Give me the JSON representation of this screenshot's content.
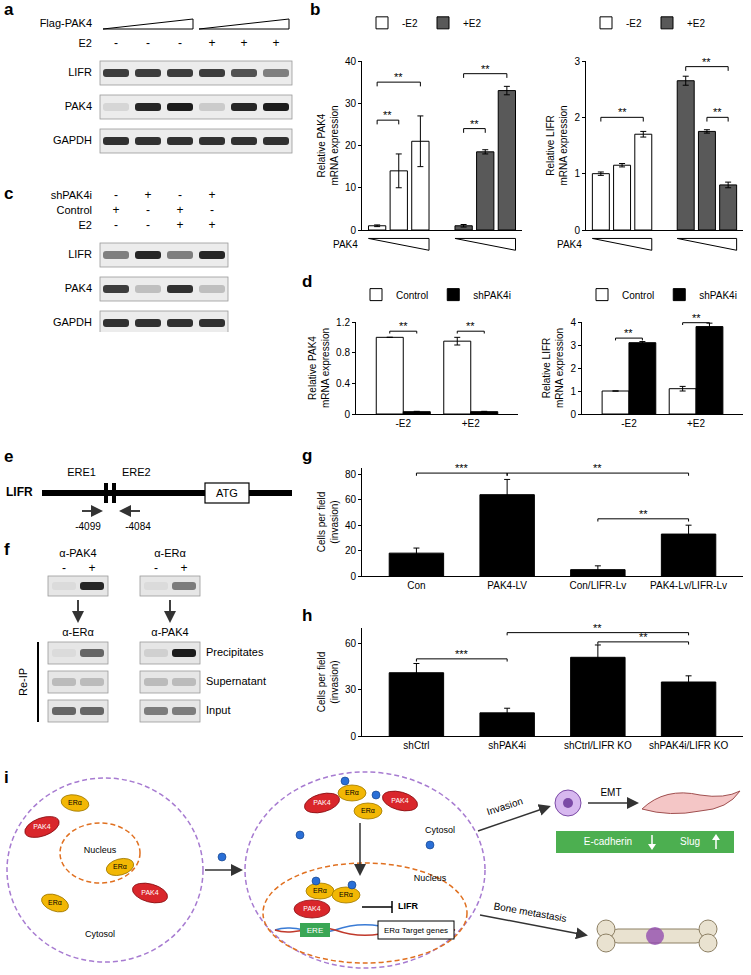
{
  "panel_labels": [
    "a",
    "b",
    "c",
    "d",
    "e",
    "f",
    "g",
    "h",
    "i"
  ],
  "chart_data": [
    {
      "type": "bar",
      "y_label": [
        "Relative PAK4",
        "mRNA expression"
      ],
      "x_label": "PAK4",
      "tick_labels": "y",
      "legend": "top",
      "grid": false,
      "ylim": [
        0,
        40
      ],
      "yticks": [
        0,
        10,
        20,
        30,
        40
      ],
      "series": [
        {
          "name": "-E2",
          "color": "#ffffff",
          "values": [
            1,
            14,
            21
          ],
          "errors": [
            0.2,
            4,
            6
          ]
        },
        {
          "name": "+E2",
          "color": "#595959",
          "values": [
            1,
            18.5,
            33
          ],
          "errors": [
            0.3,
            0.5,
            1
          ]
        }
      ],
      "significance": [
        {
          "pair": [
            [
              0,
              0
            ],
            [
              0,
              1
            ]
          ],
          "y": 26,
          "label": "**"
        },
        {
          "pair": [
            [
              0,
              0
            ],
            [
              0,
              2
            ]
          ],
          "y": 35,
          "label": "**"
        },
        {
          "pair": [
            [
              1,
              0
            ],
            [
              1,
              1
            ]
          ],
          "y": 24,
          "label": "**"
        },
        {
          "pair": [
            [
              1,
              0
            ],
            [
              1,
              2
            ]
          ],
          "y": 37,
          "label": "**"
        }
      ]
    },
    {
      "type": "bar",
      "y_label": [
        "Relative LIFR",
        "mRNA expression"
      ],
      "x_label": "PAK4",
      "tick_labels": "y",
      "legend": "top",
      "grid": false,
      "ylim": [
        0,
        3
      ],
      "yticks": [
        0,
        1,
        2,
        3
      ],
      "series": [
        {
          "name": "-E2",
          "color": "#ffffff",
          "values": [
            1.0,
            1.15,
            1.7
          ],
          "errors": [
            0.03,
            0.03,
            0.05
          ]
        },
        {
          "name": "+E2",
          "color": "#595959",
          "values": [
            2.65,
            1.75,
            0.8
          ],
          "errors": [
            0.08,
            0.03,
            0.05
          ]
        }
      ],
      "significance": [
        {
          "pair": [
            [
              0,
              0
            ],
            [
              0,
              2
            ]
          ],
          "y": 2.0,
          "label": "**"
        },
        {
          "pair": [
            [
              1,
              0
            ],
            [
              1,
              2
            ]
          ],
          "y": 2.9,
          "label": "**"
        },
        {
          "pair": [
            [
              1,
              1
            ],
            [
              1,
              2
            ]
          ],
          "y": 2.0,
          "label": "**"
        }
      ]
    },
    {
      "type": "bar",
      "y_label": [
        "Relative PAK4",
        "mRNA expression"
      ],
      "legend": "top",
      "grid": false,
      "categories": [
        "-E2",
        "+E2"
      ],
      "ylim": [
        0,
        1.2
      ],
      "yticks": [
        0,
        0.4,
        0.8,
        1.2
      ],
      "series": [
        {
          "name": "Control",
          "color": "#ffffff",
          "values": [
            1.0,
            0.95
          ],
          "errors": [
            0.0,
            0.05
          ]
        },
        {
          "name": "shPAK4i",
          "color": "#000000",
          "values": [
            0.03,
            0.03
          ],
          "errors": [
            0.005,
            0.005
          ]
        }
      ],
      "significance": [
        {
          "pair": [
            [
              0,
              0
            ],
            [
              1,
              0
            ]
          ],
          "y": 1.08,
          "label": "**"
        },
        {
          "pair": [
            [
              0,
              1
            ],
            [
              1,
              1
            ]
          ],
          "y": 1.08,
          "label": "**"
        }
      ]
    },
    {
      "type": "bar",
      "y_label": [
        "Relative LIFR",
        "mRNA expression"
      ],
      "legend": "top",
      "grid": false,
      "categories": [
        "-E2",
        "+E2"
      ],
      "ylim": [
        0,
        4
      ],
      "yticks": [
        0,
        1,
        2,
        3,
        4
      ],
      "series": [
        {
          "name": "Control",
          "color": "#ffffff",
          "values": [
            1.0,
            1.1
          ],
          "errors": [
            0.0,
            0.1
          ]
        },
        {
          "name": "shPAK4i",
          "color": "#000000",
          "values": [
            3.1,
            3.8
          ],
          "errors": [
            0.05,
            0.15
          ]
        }
      ],
      "significance": [
        {
          "pair": [
            [
              0,
              0
            ],
            [
              1,
              0
            ]
          ],
          "y": 3.3,
          "label": "**"
        },
        {
          "pair": [
            [
              0,
              1
            ],
            [
              1,
              1
            ]
          ],
          "y": 3.97,
          "label": "**"
        }
      ]
    },
    {
      "type": "bar",
      "y_label": [
        "Cells per field",
        "(invasion)"
      ],
      "grid": false,
      "color": "#000000",
      "categories": [
        "Con",
        "PAK4-LV",
        "Con/LIFR-Lv",
        "PAK4-Lv/LIFR-Lv"
      ],
      "values": [
        18,
        64,
        5,
        33
      ],
      "errors": [
        4,
        12,
        3,
        7
      ],
      "ylim": [
        0,
        85
      ],
      "yticks": [
        0,
        20,
        40,
        60,
        80
      ],
      "significance": [
        {
          "pair": [
            0,
            1
          ],
          "y": 81,
          "label": "***"
        },
        {
          "pair": [
            1,
            3
          ],
          "y": 81,
          "label": "**"
        },
        {
          "pair": [
            2,
            3
          ],
          "y": 45,
          "label": "**"
        }
      ]
    },
    {
      "type": "bar",
      "y_label": [
        "Cells per field",
        "(invasion)"
      ],
      "grid": false,
      "color": "#000000",
      "categories": [
        "shCtrl",
        "shPAK4i",
        "shCtrl/LIFR KO",
        "shPAK4i/LIFR KO"
      ],
      "values": [
        41,
        15,
        51,
        35
      ],
      "errors": [
        6,
        3,
        8,
        4
      ],
      "ylim": [
        0,
        70
      ],
      "yticks": [
        0,
        30,
        60
      ],
      "significance": [
        {
          "pair": [
            0,
            1
          ],
          "y": 50,
          "label": "***"
        },
        {
          "pair": [
            2,
            3
          ],
          "y": 61,
          "label": "**"
        },
        {
          "pair": [
            1,
            3
          ],
          "y": 67,
          "label": "**"
        }
      ]
    }
  ],
  "blots": {
    "a": {
      "ramp_label": "Flag-PAK4",
      "rows": [
        {
          "label": "E2",
          "marks": [
            "-",
            "-",
            "-",
            "+",
            "+",
            "+"
          ]
        }
      ],
      "bands": [
        {
          "label": "LIFR",
          "intensity": [
            0.8,
            0.8,
            0.8,
            0.8,
            0.7,
            0.5
          ]
        },
        {
          "label": "PAK4",
          "intensity": [
            0.1,
            0.9,
            0.95,
            0.15,
            0.9,
            0.95
          ]
        },
        {
          "label": "GAPDH",
          "intensity": [
            0.85,
            0.85,
            0.85,
            0.85,
            0.85,
            0.85
          ]
        }
      ]
    },
    "c": {
      "rows": [
        {
          "label": "shPAK4i",
          "marks": [
            "-",
            "+",
            "-",
            "+"
          ]
        },
        {
          "label": "Control",
          "marks": [
            "+",
            "-",
            "+",
            "-"
          ]
        },
        {
          "label": "E2",
          "marks": [
            "-",
            "-",
            "+",
            "+"
          ]
        }
      ],
      "bands": [
        {
          "label": "LIFR",
          "intensity": [
            0.5,
            0.9,
            0.5,
            0.9
          ]
        },
        {
          "label": "PAK4",
          "intensity": [
            0.8,
            0.2,
            0.85,
            0.2
          ]
        },
        {
          "label": "GAPDH",
          "intensity": [
            0.85,
            0.85,
            0.85,
            0.85
          ]
        }
      ]
    }
  },
  "promoter": {
    "gene": "LIFR",
    "elements": [
      "ERE1",
      "ERE2"
    ],
    "start_codon": "ATG",
    "primers": [
      "-4099",
      "-4084"
    ]
  },
  "chip": {
    "reip_label": "Re-IP",
    "reip_rows": [
      "Precipitates",
      "Supernatant",
      "Input"
    ],
    "columns": [
      {
        "antibody": "α-PAK4",
        "reip_antibody": "α-ERα",
        "lanes": [
          "-",
          "+"
        ],
        "ip": [
          0.05,
          0.9
        ],
        "reip": [
          [
            0.05,
            0.6
          ],
          [
            0.2,
            0.2
          ],
          [
            0.6,
            0.6
          ]
        ]
      },
      {
        "antibody": "α-ERα",
        "reip_antibody": "α-PAK4",
        "lanes": [
          "-",
          "+"
        ],
        "ip": [
          0.05,
          0.5
        ],
        "reip": [
          [
            0.1,
            0.95
          ],
          [
            0.2,
            0.2
          ],
          [
            0.5,
            0.5
          ]
        ]
      }
    ]
  },
  "model": {
    "pak4": "PAK4",
    "era": "ERα",
    "nucleus": "Nucleus",
    "cytosol": "Cytosol",
    "ere": "ERE",
    "target": "ERα Target genes",
    "lifr": "LIFR",
    "invasion": "Invasion",
    "emt": "EMT",
    "ecad": "E-cadherin",
    "slug": "Slug",
    "bone": "Bone metastasis"
  }
}
